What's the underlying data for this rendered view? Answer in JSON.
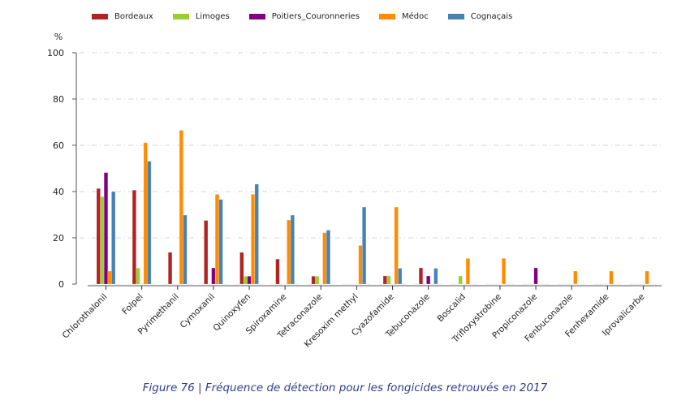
{
  "chart_data": {
    "type": "bar",
    "title": "",
    "xlabel": "",
    "ylabel": "%",
    "ylim": [
      0,
      100
    ],
    "yticks": [
      0,
      20,
      40,
      60,
      80,
      100
    ],
    "grid": "horizontal dashed",
    "legend_position": "top-left",
    "categories": [
      "Chlorothalonil",
      "Folpel",
      "Pyrimethanil",
      "Cymoxanil",
      "Quinoxyfen",
      "Spiroxamine",
      "Tetraconazole",
      "Kresoxim methyl",
      "Cyazofamide",
      "Tebuconazole",
      "Boscalid",
      "Trifloxystrobine",
      "Propiconazole",
      "Fenbuconazole",
      "Fenhexamide",
      "Iprovalicarbe"
    ],
    "series": [
      {
        "name": "Bordeaux",
        "color": "#b22222",
        "values": [
          41.3,
          40.6,
          13.7,
          27.5,
          13.7,
          10.8,
          3.4,
          0,
          3.5,
          7.0,
          0,
          0,
          0,
          0,
          0,
          0
        ]
      },
      {
        "name": "Limoges",
        "color": "#9acd32",
        "values": [
          37.8,
          6.9,
          0,
          0,
          3.4,
          0,
          3.4,
          0,
          3.5,
          0,
          3.5,
          0,
          0,
          0,
          0,
          0
        ]
      },
      {
        "name": "Poitiers_Couronneries",
        "color": "#800080",
        "values": [
          48.2,
          0,
          0,
          7.0,
          3.4,
          0,
          0,
          0,
          0,
          3.5,
          0,
          0,
          7.0,
          0,
          0,
          0
        ]
      },
      {
        "name": "Médoc",
        "color": "#ff8c00",
        "values": [
          5.6,
          61.1,
          66.5,
          38.8,
          38.8,
          27.7,
          22.2,
          16.7,
          33.3,
          0,
          11.1,
          11.1,
          0,
          5.6,
          5.6,
          5.6
        ]
      },
      {
        "name": "Cognaçais",
        "color": "#4682b4",
        "values": [
          40.0,
          53.1,
          29.8,
          36.6,
          43.2,
          29.8,
          23.3,
          33.3,
          6.8,
          6.8,
          0,
          0,
          0,
          0,
          0,
          0
        ]
      }
    ]
  },
  "caption": "Figure 76 | Fréquence de détection pour les fongicides retrouvés en 2017"
}
